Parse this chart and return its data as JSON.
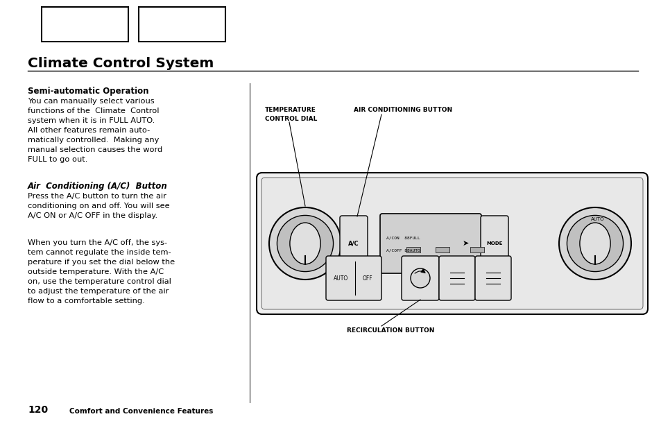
{
  "title": "Climate Control System",
  "page_num": "120",
  "page_label": "Comfort and Convenience Features",
  "bg_color": "#ffffff",
  "text_color": "#000000",
  "section_heading": "Semi-automatic Operation",
  "section_body": "You can manually select various\nfunctions of the  Climate  Control\nsystem when it is in FULL AUTO.\nAll other features remain auto-\nmatically controlled.  Making any\nmanual selection causes the word\nFULL to go out.",
  "sub_heading": "Air  Conditioning (A/C)  Button",
  "sub_body1": "Press the A/C button to turn the air\nconditioning on and off. You will see\nA/C ON or A/C OFF in the display.",
  "sub_body2": "When you turn the A/C off, the sys-\ntem cannot regulate the inside tem-\nperature if you set the dial below the\noutside temperature. With the A/C\non, use the temperature control dial\nto adjust the temperature of the air\nflow to a comfortable setting.",
  "label_temp": "TEMPERATURE\nCONTROL DIAL",
  "label_ac": "AIR CONDITIONING BUTTON",
  "label_recirc": "RECIRCULATION BUTTON"
}
